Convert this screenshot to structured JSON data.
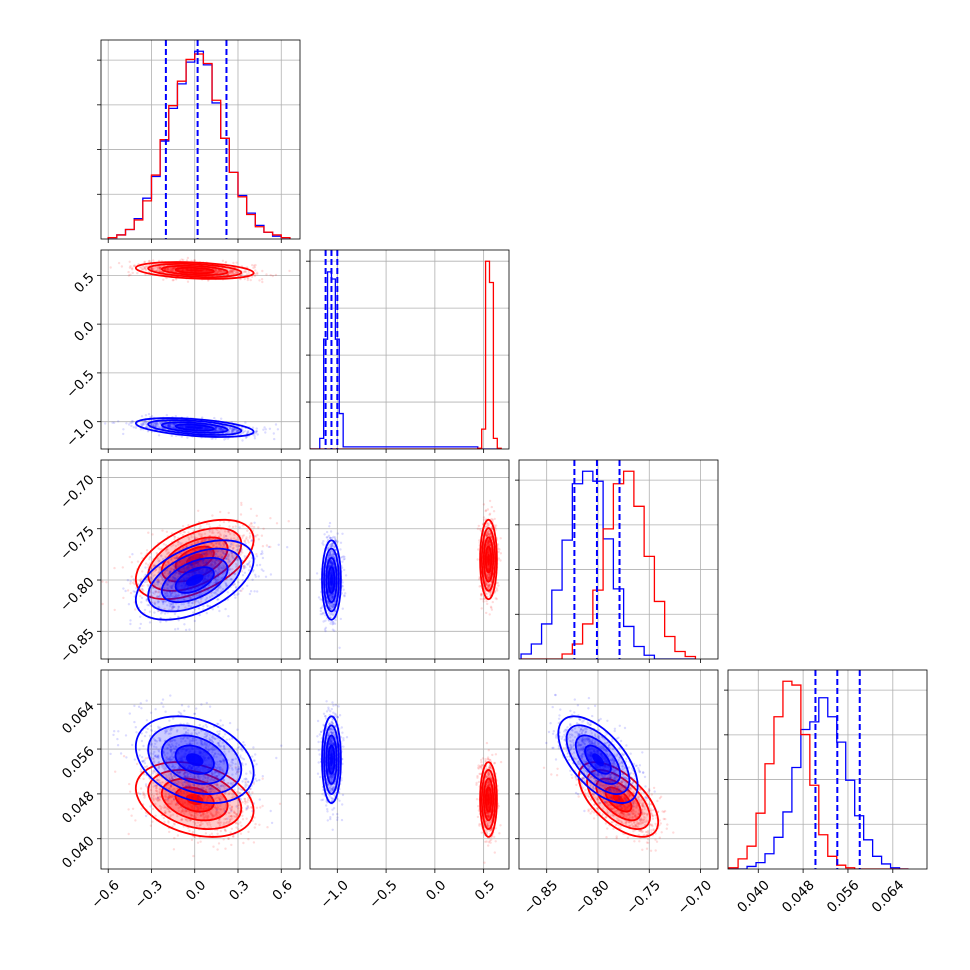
{
  "chart_data": {
    "type": "scatter",
    "subtype": "corner",
    "title": "",
    "series_colors": {
      "red": "#ff0000",
      "blue": "#0000ff"
    },
    "grid": true,
    "parameters": [
      {
        "range": [
          -0.65,
          0.73
        ],
        "ticks": [
          -0.6,
          -0.3,
          0.0,
          0.3,
          0.6
        ],
        "tick_labels": [
          "−0.6",
          "−0.3",
          "0.0",
          "0.3",
          "0.6"
        ]
      },
      {
        "range": [
          -1.28,
          0.76
        ],
        "ticks": [
          -1.0,
          -0.5,
          0.0,
          0.5
        ],
        "tick_labels": [
          "−1.0",
          "−0.5",
          "0.0",
          "0.5"
        ]
      },
      {
        "range": [
          -0.877,
          -0.683
        ],
        "ticks": [
          -0.85,
          -0.8,
          -0.75,
          -0.7
        ],
        "tick_labels": [
          "−0.85",
          "−0.80",
          "−0.75",
          "−0.70"
        ]
      },
      {
        "range": [
          0.0346,
          0.0701
        ],
        "ticks": [
          0.04,
          0.048,
          0.056,
          0.064
        ],
        "tick_labels": [
          "0.040",
          "0.048",
          "0.056",
          "0.064"
        ]
      }
    ],
    "quantile_lines": [
      [
        -0.2,
        0.02,
        0.22
      ],
      [
        -1.12,
        -1.06,
        -1.0
      ],
      [
        -0.823,
        -0.801,
        -0.779
      ],
      [
        0.0502,
        0.0541,
        0.0581
      ]
    ],
    "means": {
      "red": [
        0.0,
        0.55,
        -0.78,
        0.047
      ],
      "blue": [
        0.0,
        -1.06,
        -0.8,
        0.0541
      ]
    },
    "stds": {
      "red": [
        0.19,
        0.04,
        0.018,
        0.0031
      ],
      "blue": [
        0.19,
        0.045,
        0.018,
        0.0036
      ]
    },
    "correlations": {
      "red": [
        [
          1,
          -0.3,
          0.5,
          -0.3
        ],
        [
          -0.3,
          1,
          0,
          0
        ],
        [
          0.5,
          0,
          1,
          -0.6
        ],
        [
          -0.3,
          0,
          -0.6,
          1
        ]
      ],
      "blue": [
        [
          1,
          -0.45,
          0.5,
          -0.3
        ],
        [
          -0.45,
          1,
          0,
          0
        ],
        [
          0.5,
          0,
          1,
          -0.6
        ],
        [
          -0.3,
          0,
          -0.6,
          1
        ]
      ]
    },
    "histograms": [
      {
        "bin_edges": [
          -0.6,
          -0.54,
          -0.48,
          -0.42,
          -0.36,
          -0.3,
          -0.24,
          -0.18,
          -0.12,
          -0.06,
          0.0,
          0.06,
          0.12,
          0.18,
          0.24,
          0.3,
          0.36,
          0.42,
          0.48,
          0.54,
          0.6,
          0.66
        ],
        "red": [
          1,
          3,
          7,
          14,
          28,
          47,
          73,
          98,
          116,
          132,
          136,
          129,
          102,
          74,
          49,
          31,
          18,
          9,
          5,
          3,
          1
        ],
        "blue": [
          1,
          3,
          7,
          15,
          30,
          46,
          72,
          96,
          114,
          130,
          138,
          128,
          100,
          74,
          49,
          32,
          19,
          10,
          5,
          2,
          1
        ]
      },
      {
        "bin_edges": [
          -1.28,
          -1.18,
          -1.14,
          -1.1,
          -1.06,
          -1.02,
          -0.98,
          -0.94,
          0.44,
          0.48,
          0.52,
          0.56,
          0.6,
          0.64,
          0.68
        ],
        "red": [
          0,
          0,
          0,
          0,
          0,
          0,
          0,
          0,
          1,
          28,
          265,
          235,
          15,
          1
        ],
        "blue": [
          0,
          15,
          155,
          250,
          240,
          155,
          50,
          3,
          0,
          0,
          0,
          0,
          0,
          0
        ]
      },
      {
        "bin_edges": [
          -0.875,
          -0.865,
          -0.855,
          -0.845,
          -0.835,
          -0.825,
          -0.815,
          -0.805,
          -0.795,
          -0.785,
          -0.775,
          -0.765,
          -0.755,
          -0.745,
          -0.735,
          -0.725,
          -0.715,
          -0.705
        ],
        "red": [
          0,
          0,
          0,
          0,
          4,
          12,
          28,
          55,
          104,
          140,
          150,
          122,
          82,
          46,
          18,
          6,
          2
        ],
        "blue": [
          4,
          12,
          28,
          55,
          95,
          140,
          150,
          142,
          96,
          56,
          26,
          10,
          3,
          0,
          0,
          0,
          0
        ]
      },
      {
        "bin_edges": [
          0.0348,
          0.0364,
          0.038,
          0.0396,
          0.0412,
          0.0428,
          0.0444,
          0.046,
          0.0476,
          0.0492,
          0.0508,
          0.0524,
          0.054,
          0.0556,
          0.0572,
          0.0588,
          0.0604,
          0.062,
          0.0636,
          0.0652,
          0.0668
        ],
        "red": [
          1,
          8,
          18,
          44,
          83,
          120,
          148,
          145,
          106,
          66,
          27,
          10,
          3,
          1,
          0,
          0,
          0,
          0,
          0,
          0
        ],
        "blue": [
          0,
          0,
          2,
          5,
          12,
          25,
          45,
          80,
          110,
          116,
          135,
          120,
          100,
          70,
          42,
          23,
          10,
          4,
          1,
          0
        ]
      }
    ]
  }
}
